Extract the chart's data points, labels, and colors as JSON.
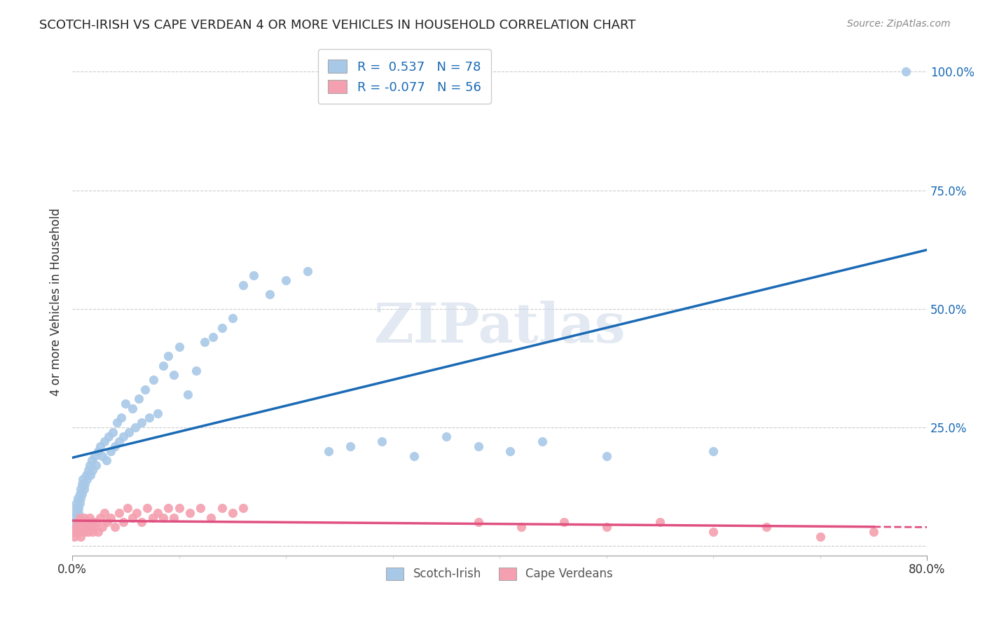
{
  "title": "SCOTCH-IRISH VS CAPE VERDEAN 4 OR MORE VEHICLES IN HOUSEHOLD CORRELATION CHART",
  "source": "Source: ZipAtlas.com",
  "ylabel": "4 or more Vehicles in Household",
  "xlim": [
    0.0,
    0.8
  ],
  "ylim": [
    -0.02,
    1.05
  ],
  "legend_r_blue": "0.537",
  "legend_n_blue": "78",
  "legend_r_pink": "-0.077",
  "legend_n_pink": "56",
  "blue_color": "#a8c8e8",
  "blue_line_color": "#1a6ab5",
  "pink_color": "#f4a0b0",
  "pink_line_color": "#e05080",
  "watermark": "ZIPatlas",
  "scotch_irish_x": [
    0.001,
    0.002,
    0.002,
    0.003,
    0.003,
    0.004,
    0.004,
    0.005,
    0.005,
    0.006,
    0.006,
    0.007,
    0.007,
    0.008,
    0.008,
    0.009,
    0.009,
    0.01,
    0.011,
    0.012,
    0.013,
    0.014,
    0.015,
    0.016,
    0.017,
    0.018,
    0.019,
    0.021,
    0.022,
    0.024,
    0.026,
    0.028,
    0.03,
    0.032,
    0.034,
    0.036,
    0.038,
    0.04,
    0.042,
    0.044,
    0.046,
    0.048,
    0.05,
    0.053,
    0.056,
    0.059,
    0.062,
    0.065,
    0.068,
    0.072,
    0.076,
    0.08,
    0.085,
    0.09,
    0.095,
    0.1,
    0.108,
    0.116,
    0.124,
    0.132,
    0.14,
    0.15,
    0.16,
    0.17,
    0.185,
    0.2,
    0.22,
    0.24,
    0.26,
    0.29,
    0.32,
    0.35,
    0.38,
    0.41,
    0.44,
    0.5,
    0.6,
    0.78
  ],
  "scotch_irish_y": [
    0.05,
    0.04,
    0.06,
    0.03,
    0.08,
    0.07,
    0.09,
    0.06,
    0.1,
    0.08,
    0.07,
    0.11,
    0.09,
    0.12,
    0.1,
    0.13,
    0.11,
    0.14,
    0.12,
    0.13,
    0.15,
    0.14,
    0.16,
    0.17,
    0.15,
    0.18,
    0.16,
    0.19,
    0.17,
    0.2,
    0.21,
    0.19,
    0.22,
    0.18,
    0.23,
    0.2,
    0.24,
    0.21,
    0.26,
    0.22,
    0.27,
    0.23,
    0.3,
    0.24,
    0.29,
    0.25,
    0.31,
    0.26,
    0.33,
    0.27,
    0.35,
    0.28,
    0.38,
    0.4,
    0.36,
    0.42,
    0.32,
    0.37,
    0.43,
    0.44,
    0.46,
    0.48,
    0.55,
    0.57,
    0.53,
    0.56,
    0.58,
    0.2,
    0.21,
    0.22,
    0.19,
    0.23,
    0.21,
    0.2,
    0.22,
    0.19,
    0.2,
    1.0
  ],
  "cape_verdean_x": [
    0.001,
    0.002,
    0.003,
    0.004,
    0.005,
    0.006,
    0.007,
    0.008,
    0.009,
    0.01,
    0.011,
    0.012,
    0.013,
    0.014,
    0.015,
    0.016,
    0.017,
    0.018,
    0.019,
    0.02,
    0.022,
    0.024,
    0.026,
    0.028,
    0.03,
    0.033,
    0.036,
    0.04,
    0.044,
    0.048,
    0.052,
    0.056,
    0.06,
    0.065,
    0.07,
    0.075,
    0.08,
    0.085,
    0.09,
    0.095,
    0.1,
    0.11,
    0.12,
    0.13,
    0.14,
    0.15,
    0.16,
    0.38,
    0.42,
    0.46,
    0.5,
    0.55,
    0.6,
    0.65,
    0.7,
    0.75
  ],
  "cape_verdean_y": [
    0.03,
    0.02,
    0.04,
    0.03,
    0.05,
    0.03,
    0.06,
    0.02,
    0.05,
    0.04,
    0.06,
    0.03,
    0.04,
    0.05,
    0.03,
    0.06,
    0.04,
    0.05,
    0.03,
    0.04,
    0.05,
    0.03,
    0.06,
    0.04,
    0.07,
    0.05,
    0.06,
    0.04,
    0.07,
    0.05,
    0.08,
    0.06,
    0.07,
    0.05,
    0.08,
    0.06,
    0.07,
    0.06,
    0.08,
    0.06,
    0.08,
    0.07,
    0.08,
    0.06,
    0.08,
    0.07,
    0.08,
    0.05,
    0.04,
    0.05,
    0.04,
    0.05,
    0.03,
    0.04,
    0.02,
    0.03
  ]
}
